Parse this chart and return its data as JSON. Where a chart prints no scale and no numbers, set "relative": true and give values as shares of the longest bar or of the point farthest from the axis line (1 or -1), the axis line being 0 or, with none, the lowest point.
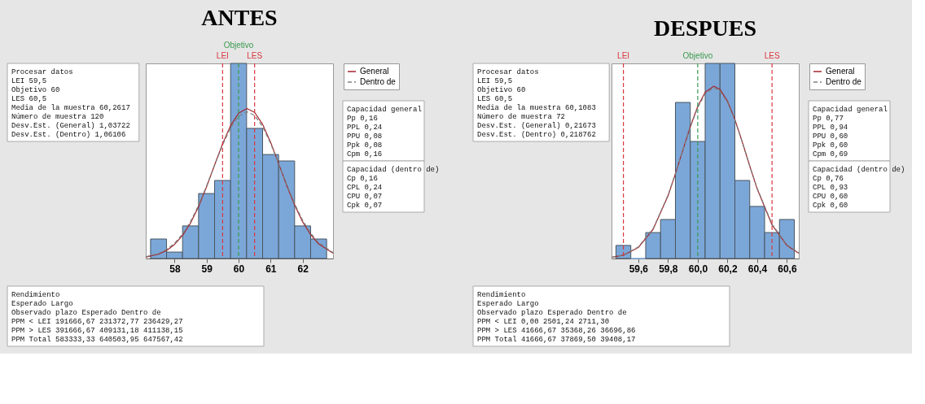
{
  "chart_data": [
    {
      "type": "histogram",
      "title": "ANTES",
      "relative": true,
      "color": "#7ba7d8",
      "bins": [
        57.25,
        57.75,
        58.25,
        58.75,
        59.25,
        59.75,
        60.25,
        60.75,
        61.25,
        61.75,
        62.25,
        62.75
      ],
      "values": [
        0.1,
        0.033,
        0.167,
        0.333,
        0.4,
        1,
        0.667,
        0.533,
        0.5,
        0.167,
        0.1
      ],
      "series": [
        {
          "name": "General",
          "type": "line",
          "color": "#a3262c",
          "line_style": "solid",
          "x": [
            57.1,
            57.5,
            57.75,
            58.0,
            58.25,
            58.5,
            58.75,
            59.0,
            59.25,
            59.5,
            59.75,
            60.0,
            60.26,
            60.5,
            60.75,
            61.0,
            61.25,
            61.5,
            61.75,
            62.0,
            62.25,
            62.5,
            62.95
          ],
          "values": [
            0.007,
            0.022,
            0.041,
            0.072,
            0.118,
            0.182,
            0.266,
            0.368,
            0.479,
            0.588,
            0.681,
            0.745,
            0.769,
            0.749,
            0.688,
            0.596,
            0.487,
            0.376,
            0.274,
            0.188,
            0.122,
            0.075,
            0.027
          ]
        },
        {
          "name": "Dentro de",
          "type": "line",
          "color": "#7f7f7f",
          "line_style": "dashed",
          "x": [
            57.1,
            57.5,
            57.75,
            58.0,
            58.25,
            58.5,
            58.75,
            59.0,
            59.25,
            59.5,
            59.75,
            60.0,
            60.26,
            60.5,
            60.75,
            61.0,
            61.25,
            61.5,
            61.75,
            62.0,
            62.25,
            62.5,
            62.95
          ],
          "values": [
            0.009,
            0.026,
            0.046,
            0.078,
            0.125,
            0.19,
            0.273,
            0.372,
            0.478,
            0.582,
            0.67,
            0.73,
            0.752,
            0.733,
            0.676,
            0.59,
            0.487,
            0.38,
            0.281,
            0.196,
            0.13,
            0.081,
            0.03
          ]
        }
      ],
      "xlim": [
        57.1,
        62.95
      ],
      "xticks": [
        58,
        59,
        60,
        61,
        62
      ],
      "grid": false,
      "legend": "top right",
      "ref_lines": [
        {
          "axis": "x",
          "value": 59.5,
          "label": "LEI",
          "color": "#d9363e",
          "line_style": "dashed"
        },
        {
          "axis": "x",
          "value": 60,
          "label": "Objetivo",
          "color": "#3a9a4f",
          "line_style": "dashed"
        },
        {
          "axis": "x",
          "value": 60.5,
          "label": "LES",
          "color": "#d9363e",
          "line_style": "dashed"
        }
      ],
      "annotations": [
        "Procesar datos\nLEI\t59,5\nObjetivo\t60\nLES\t60,5\nMedia de la muestra\t60,2617\nNúmero de muestra\t120\nDesv.Est. (General)\t1,03722\nDesv.Est. (Dentro)\t1,06106",
        "Capacidad general\nPp\t0,16\nPPL\t0,24\nPPU\t0,08\nPpk\t0,08\nCpm\t0,16",
        "Capacidad (dentro de)\nCp\t0,16\nCPL\t0,24\nCPU\t0,07\nCpk\t0,07",
        "Rendimiento\n\t\tEsperado Largo\n\tObservado\tplazo\tEsperado Dentro de\nPPM < LEI\t191666,67\t231372,77\t236429,27\nPPM > LES\t391666,67\t409131,18\t411138,15\nPPM Total\t583333,33\t640503,95\t647567,42"
      ]
    },
    {
      "type": "histogram",
      "title": "DESPUES",
      "relative": true,
      "color": "#7ba7d8",
      "bins": [
        59.45,
        59.55,
        59.65,
        59.75,
        59.85,
        59.95,
        60.05,
        60.15,
        60.25,
        60.35,
        60.45,
        60.55,
        60.65
      ],
      "values": [
        0.067,
        0,
        0.133,
        0.2,
        0.8,
        0.6,
        1,
        1,
        0.4,
        0.267,
        0.133,
        0.2
      ],
      "series": [
        {
          "name": "General",
          "type": "line",
          "color": "#a3262c",
          "line_style": "solid",
          "x": [
            59.42,
            59.5,
            59.6,
            59.7,
            59.8,
            59.85,
            59.9,
            59.95,
            60.0,
            60.05,
            60.1083,
            60.15,
            60.2,
            60.25,
            60.3,
            60.35,
            60.4,
            60.5,
            60.6,
            60.68
          ],
          "values": [
            0.006,
            0.017,
            0.056,
            0.15,
            0.321,
            0.434,
            0.556,
            0.676,
            0.779,
            0.852,
            0.883,
            0.867,
            0.807,
            0.713,
            0.597,
            0.474,
            0.357,
            0.172,
            0.067,
            0.027
          ]
        },
        {
          "name": "Dentro de",
          "type": "line",
          "color": "#7f7f7f",
          "line_style": "dashed",
          "x": [
            59.42,
            59.5,
            59.6,
            59.7,
            59.8,
            59.85,
            59.9,
            59.95,
            60.0,
            60.05,
            60.1083,
            60.15,
            60.2,
            60.25,
            60.3,
            60.35,
            60.4,
            60.5,
            60.6,
            60.68
          ],
          "values": [
            0.006,
            0.018,
            0.059,
            0.153,
            0.324,
            0.436,
            0.556,
            0.673,
            0.774,
            0.844,
            0.875,
            0.859,
            0.801,
            0.709,
            0.596,
            0.475,
            0.36,
            0.176,
            0.07,
            0.029
          ]
        }
      ],
      "xlim": [
        59.42,
        60.68
      ],
      "xticks": [
        {
          "value": 59.6,
          "label": "59,6"
        },
        {
          "value": 59.8,
          "label": "59,8"
        },
        {
          "value": 60.0,
          "label": "60,0"
        },
        {
          "value": 60.2,
          "label": "60,2"
        },
        {
          "value": 60.4,
          "label": "60,4"
        },
        {
          "value": 60.6,
          "label": "60,6"
        }
      ],
      "grid": false,
      "legend": "top right",
      "ref_lines": [
        {
          "axis": "x",
          "value": 59.5,
          "label": "LEI",
          "color": "#d9363e",
          "line_style": "dashed"
        },
        {
          "axis": "x",
          "value": 60,
          "label": "Objetivo",
          "color": "#3a9a4f",
          "line_style": "dashed"
        },
        {
          "axis": "x",
          "value": 60.5,
          "label": "LES",
          "color": "#d9363e",
          "line_style": "dashed"
        }
      ],
      "annotations": [
        "Procesar datos\nLEI\t59,5\nObjetivo\t60\nLES\t60,5\nMedia de la muestra\t60,1083\nNúmero de muestra\t72\nDesv.Est. (General)\t0,21673\nDesv.Est. (Dentro)\t0,218762",
        "Capacidad general\nPp\t0,77\nPPL\t0,94\nPPU\t0,60\nPpk\t0,60\nCpm\t0,69",
        "Capacidad (dentro de)\nCp\t0,76\nCPL\t0,93\nCPU\t0,60\nCpk\t0,60",
        "Rendimiento\n\t\tEsperado Largo\n\tObservado\tplazo\tEsperado Dentro de\nPPM < LEI\t0,00\t2501,24\t2711,30\nPPM > LES\t41666,67\t35368,26\t36696,86\nPPM Total\t41666,67\t37869,50\t39408,17"
      ]
    }
  ]
}
